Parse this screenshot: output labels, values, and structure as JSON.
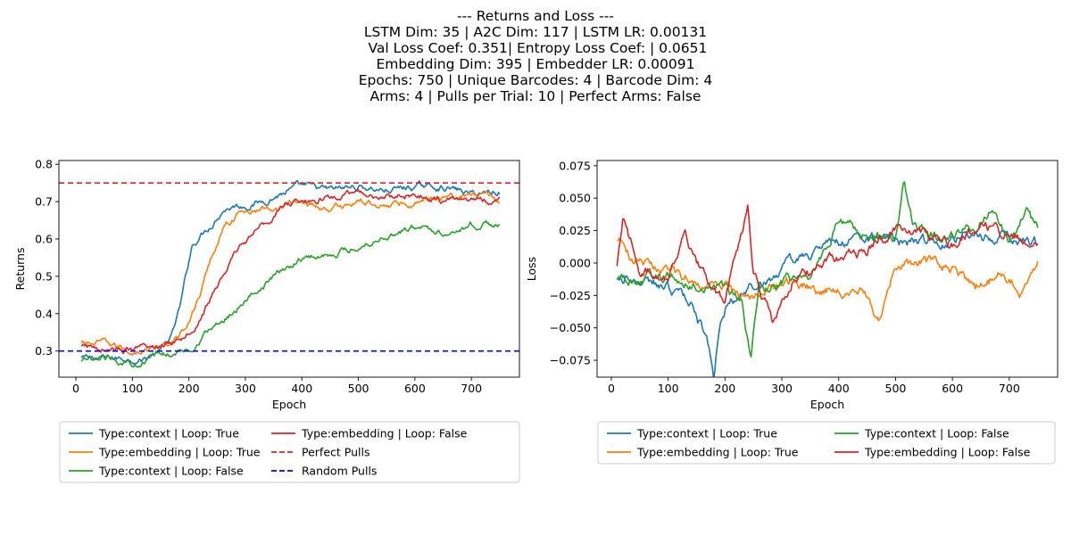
{
  "figure": {
    "suptitle_lines": [
      "--- Returns and Loss ---",
      "LSTM Dim: 35 | A2C Dim: 117 | LSTM LR: 0.00131",
      " Val Loss Coef: 0.351| Entropy Loss Coef: | 0.0651",
      "Embedding Dim: 395 | Embedder LR: 0.00091",
      "Epochs: 750 | Unique Barcodes: 4 | Barcode Dim: 4",
      "Arms: 4 | Pulls per Trial: 10 | Perfect Arms: False"
    ],
    "colors": {
      "blue": "#1f77b4",
      "orange": "#ff7f0e",
      "green": "#2ca02c",
      "red": "#d62728"
    }
  },
  "chart_data": [
    {
      "type": "line",
      "xlabel": "Epoch",
      "ylabel": "Returns",
      "xlim": [
        -30,
        785
      ],
      "ylim": [
        0.23,
        0.81
      ],
      "xticks": [
        0,
        100,
        200,
        300,
        400,
        500,
        600,
        700
      ],
      "yticks": [
        0.3,
        0.4,
        0.5,
        0.6,
        0.7,
        0.8
      ],
      "grid": false,
      "legend_position": "below",
      "legend_columns": 2,
      "series": [
        {
          "name": "Type:context | Loop: True",
          "color": "#1f77b4",
          "style": "solid",
          "x": [
            10,
            40,
            80,
            120,
            150,
            170,
            185,
            195,
            205,
            220,
            240,
            260,
            280,
            300,
            330,
            360,
            400,
            450,
            500,
            550,
            600,
            650,
            700,
            750
          ],
          "y": [
            0.28,
            0.28,
            0.28,
            0.28,
            0.3,
            0.34,
            0.42,
            0.5,
            0.58,
            0.61,
            0.64,
            0.68,
            0.69,
            0.69,
            0.7,
            0.72,
            0.74,
            0.73,
            0.74,
            0.73,
            0.74,
            0.74,
            0.72,
            0.73
          ]
        },
        {
          "name": "Type:embedding | Loop: True",
          "color": "#ff7f0e",
          "style": "solid",
          "x": [
            10,
            50,
            100,
            150,
            180,
            200,
            220,
            240,
            260,
            290,
            330,
            400,
            450,
            500,
            550,
            600,
            650,
            700,
            750
          ],
          "y": [
            0.32,
            0.32,
            0.3,
            0.31,
            0.33,
            0.38,
            0.45,
            0.55,
            0.63,
            0.67,
            0.68,
            0.7,
            0.68,
            0.7,
            0.69,
            0.7,
            0.72,
            0.72,
            0.7
          ]
        },
        {
          "name": "Type:context | Loop: False",
          "color": "#2ca02c",
          "style": "solid",
          "x": [
            10,
            60,
            100,
            150,
            200,
            230,
            260,
            300,
            350,
            400,
            450,
            500,
            550,
            600,
            650,
            700,
            750
          ],
          "y": [
            0.27,
            0.28,
            0.27,
            0.29,
            0.3,
            0.35,
            0.38,
            0.44,
            0.5,
            0.55,
            0.56,
            0.58,
            0.61,
            0.63,
            0.62,
            0.64,
            0.64
          ]
        },
        {
          "name": "Type:embedding | Loop: False",
          "color": "#d62728",
          "style": "solid",
          "x": [
            10,
            50,
            100,
            150,
            190,
            210,
            230,
            260,
            290,
            330,
            370,
            400,
            450,
            500,
            550,
            600,
            650,
            700,
            750
          ],
          "y": [
            0.31,
            0.31,
            0.3,
            0.31,
            0.34,
            0.37,
            0.42,
            0.5,
            0.58,
            0.64,
            0.69,
            0.7,
            0.71,
            0.72,
            0.71,
            0.72,
            0.7,
            0.71,
            0.7
          ]
        },
        {
          "name": "Perfect Pulls",
          "color": "#d62728",
          "style": "dashed",
          "hline": 0.75
        },
        {
          "name": "Random Pulls",
          "color": "#0000ff",
          "style": "dashed",
          "hline": 0.3
        }
      ]
    },
    {
      "type": "line",
      "xlabel": "Epoch",
      "ylabel": "Loss",
      "xlim": [
        -25,
        785
      ],
      "ylim": [
        -0.088,
        0.079
      ],
      "xticks": [
        0,
        100,
        200,
        300,
        400,
        500,
        600,
        700
      ],
      "yticks": [
        -0.075,
        -0.05,
        -0.025,
        0.0,
        0.025,
        0.05,
        0.075
      ],
      "ytick_labels": [
        "−0.075",
        "−0.050",
        "−0.025",
        "0.000",
        "0.025",
        "0.050",
        "0.075"
      ],
      "grid": false,
      "legend_position": "below",
      "legend_columns": 2,
      "series": [
        {
          "name": "Type:context | Loop: True",
          "color": "#1f77b4",
          "style": "solid",
          "x": [
            10,
            50,
            100,
            140,
            160,
            175,
            180,
            190,
            210,
            240,
            280,
            320,
            360,
            400,
            450,
            500,
            550,
            600,
            650,
            700,
            750
          ],
          "y": [
            -0.01,
            -0.015,
            -0.02,
            -0.03,
            -0.05,
            -0.07,
            -0.085,
            -0.05,
            -0.03,
            -0.02,
            -0.01,
            0.0,
            0.01,
            0.015,
            0.02,
            0.015,
            0.015,
            0.02,
            0.02,
            0.02,
            0.015
          ]
        },
        {
          "name": "Type:embedding | Loop: True",
          "color": "#ff7f0e",
          "style": "solid",
          "x": [
            10,
            40,
            80,
            120,
            160,
            200,
            240,
            280,
            320,
            360,
            400,
            440,
            470,
            500,
            550,
            600,
            640,
            680,
            720,
            750
          ],
          "y": [
            0.02,
            0.0,
            -0.005,
            -0.01,
            -0.015,
            -0.02,
            -0.025,
            -0.02,
            -0.015,
            -0.02,
            -0.02,
            -0.02,
            -0.04,
            -0.005,
            0.0,
            -0.005,
            -0.02,
            -0.01,
            -0.02,
            0.0
          ]
        },
        {
          "name": "Type:context | Loop: False",
          "color": "#2ca02c",
          "style": "solid",
          "x": [
            10,
            50,
            100,
            150,
            200,
            230,
            245,
            260,
            300,
            350,
            400,
            450,
            500,
            515,
            530,
            560,
            600,
            640,
            670,
            700,
            730,
            750
          ],
          "y": [
            -0.01,
            -0.015,
            -0.01,
            -0.015,
            -0.02,
            -0.03,
            -0.075,
            -0.02,
            -0.015,
            -0.01,
            0.03,
            0.02,
            0.02,
            0.07,
            0.03,
            0.02,
            0.02,
            0.03,
            0.04,
            0.02,
            0.04,
            0.025
          ]
        },
        {
          "name": "Type:embedding | Loop: False",
          "color": "#d62728",
          "style": "solid",
          "x": [
            10,
            20,
            50,
            100,
            130,
            160,
            200,
            240,
            250,
            270,
            285,
            320,
            360,
            400,
            450,
            500,
            550,
            600,
            650,
            700,
            750
          ],
          "y": [
            0.0,
            0.035,
            -0.005,
            -0.01,
            0.02,
            -0.01,
            -0.03,
            0.04,
            -0.01,
            -0.03,
            -0.05,
            -0.01,
            -0.005,
            0.005,
            0.01,
            0.025,
            0.02,
            0.015,
            0.03,
            0.02,
            0.02
          ]
        }
      ]
    }
  ]
}
